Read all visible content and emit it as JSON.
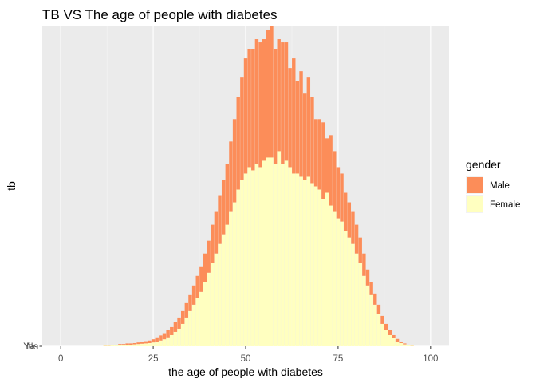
{
  "chart_data": {
    "type": "bar",
    "stacked": true,
    "title": "TB VS The age of people with diabetes",
    "xlabel": "the age of people with diabetes",
    "ylabel": "tb",
    "xlim": [
      -5,
      105
    ],
    "ylim": [
      0,
      100
    ],
    "x_ticks": [
      "0",
      "25",
      "50",
      "75",
      "100"
    ],
    "y_ticks": [
      "No",
      "Yes"
    ],
    "grid": true,
    "legend": {
      "title": "gender",
      "position": "right"
    },
    "x": [
      12,
      13,
      14,
      15,
      16,
      17,
      18,
      19,
      20,
      21,
      22,
      23,
      24,
      25,
      26,
      27,
      28,
      29,
      30,
      31,
      32,
      33,
      34,
      35,
      36,
      37,
      38,
      39,
      40,
      41,
      42,
      43,
      44,
      45,
      46,
      47,
      48,
      49,
      50,
      51,
      52,
      53,
      54,
      55,
      56,
      57,
      58,
      59,
      60,
      61,
      62,
      63,
      64,
      65,
      66,
      67,
      68,
      69,
      70,
      71,
      72,
      73,
      74,
      75,
      76,
      77,
      78,
      79,
      80,
      81,
      82,
      83,
      84,
      85,
      86,
      87,
      88,
      89,
      90,
      91,
      92,
      93,
      94,
      95
    ],
    "series": [
      {
        "name": "Female",
        "color": "#FFFFC0",
        "values": [
          0.2,
          0.2,
          0.3,
          0.3,
          0.4,
          0.4,
          0.5,
          0.5,
          0.6,
          0.7,
          0.8,
          0.9,
          1.0,
          1.2,
          1.5,
          1.8,
          2.2,
          2.8,
          3.5,
          4.5,
          5.5,
          7,
          9,
          11,
          13,
          15,
          17,
          20,
          23,
          26,
          29,
          32,
          35,
          38,
          42,
          45,
          49,
          52,
          54,
          56,
          55,
          57,
          56,
          58,
          59,
          59,
          57,
          61,
          57,
          58,
          56,
          54,
          54,
          53,
          52,
          53,
          51,
          50,
          49,
          46,
          48,
          44,
          42,
          40,
          39,
          36,
          34,
          32,
          29,
          26,
          22,
          19,
          16,
          13,
          10,
          7,
          5,
          3.5,
          2.5,
          1.5,
          1,
          0.6,
          0.3,
          0.2
        ]
      },
      {
        "name": "Male",
        "color": "#FC8D59",
        "values": [
          0.1,
          0.1,
          0.2,
          0.2,
          0.3,
          0.3,
          0.4,
          0.4,
          0.4,
          0.5,
          0.6,
          0.7,
          0.8,
          1.0,
          1.3,
          1.6,
          1.9,
          2.2,
          2.5,
          3,
          3.5,
          4,
          4.5,
          5,
          6,
          7,
          8,
          9,
          10,
          12,
          13,
          15,
          17,
          19,
          22,
          26,
          29,
          32,
          36,
          37,
          38,
          39,
          39,
          38,
          40,
          41,
          36,
          35,
          38,
          37,
          31,
          36,
          29,
          33,
          27,
          31,
          27,
          21,
          22,
          24,
          17,
          22,
          19,
          16,
          15,
          12,
          11,
          10,
          9,
          8,
          7,
          5,
          4,
          3.5,
          3,
          2.5,
          2,
          1.5,
          1,
          0.8,
          0.5,
          0.3,
          0.2,
          0.1
        ]
      }
    ]
  }
}
